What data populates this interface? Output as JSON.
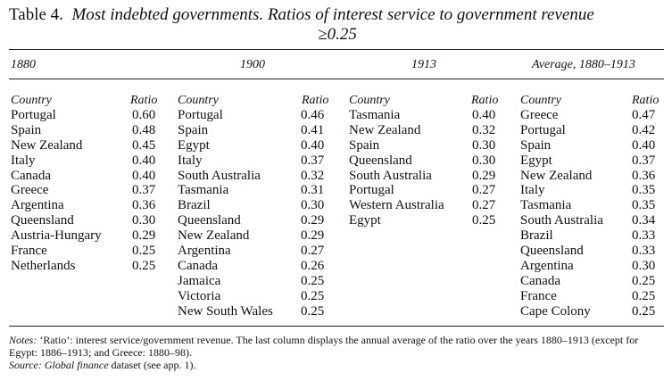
{
  "title": {
    "label": "Table 4.",
    "line1": "Most indebted governments. Ratios of interest service to government revenue",
    "line2": "≥0.25"
  },
  "headers": {
    "country": "Country",
    "ratio": "Ratio"
  },
  "groups": [
    {
      "period": "1880",
      "rows": [
        {
          "country": "Portugal",
          "ratio": "0.60"
        },
        {
          "country": "Spain",
          "ratio": "0.48"
        },
        {
          "country": "New Zealand",
          "ratio": "0.45"
        },
        {
          "country": "Italy",
          "ratio": "0.40"
        },
        {
          "country": "Canada",
          "ratio": "0.40"
        },
        {
          "country": "Greece",
          "ratio": "0.37"
        },
        {
          "country": "Argentina",
          "ratio": "0.36"
        },
        {
          "country": "Queensland",
          "ratio": "0.30"
        },
        {
          "country": "Austria-Hungary",
          "ratio": "0.29"
        },
        {
          "country": "France",
          "ratio": "0.25"
        },
        {
          "country": "Netherlands",
          "ratio": "0.25"
        }
      ]
    },
    {
      "period": "1900",
      "rows": [
        {
          "country": "Portugal",
          "ratio": "0.46"
        },
        {
          "country": "Spain",
          "ratio": "0.41"
        },
        {
          "country": "Egypt",
          "ratio": "0.40"
        },
        {
          "country": "Italy",
          "ratio": "0.37"
        },
        {
          "country": "South Australia",
          "ratio": "0.32"
        },
        {
          "country": "Tasmania",
          "ratio": "0.31"
        },
        {
          "country": "Brazil",
          "ratio": "0.30"
        },
        {
          "country": "Queensland",
          "ratio": "0.29"
        },
        {
          "country": "New Zealand",
          "ratio": "0.29"
        },
        {
          "country": "Argentina",
          "ratio": "0.27"
        },
        {
          "country": "Canada",
          "ratio": "0.26"
        },
        {
          "country": "Jamaica",
          "ratio": "0.25"
        },
        {
          "country": "Victoria",
          "ratio": "0.25"
        },
        {
          "country": "New South Wales",
          "ratio": "0.25"
        }
      ]
    },
    {
      "period": "1913",
      "rows": [
        {
          "country": "Tasmania",
          "ratio": "0.40"
        },
        {
          "country": "New Zealand",
          "ratio": "0.32"
        },
        {
          "country": "Spain",
          "ratio": "0.30"
        },
        {
          "country": "Queensland",
          "ratio": "0.30"
        },
        {
          "country": "South Australia",
          "ratio": "0.29"
        },
        {
          "country": "Portugal",
          "ratio": "0.27"
        },
        {
          "country": "Western Australia",
          "ratio": "0.27"
        },
        {
          "country": "Egypt",
          "ratio": "0.25"
        }
      ]
    },
    {
      "period": "Average, 1880–1913",
      "rows": [
        {
          "country": "Greece",
          "ratio": "0.47"
        },
        {
          "country": "Portugal",
          "ratio": "0.42"
        },
        {
          "country": "Spain",
          "ratio": "0.40"
        },
        {
          "country": "Egypt",
          "ratio": "0.37"
        },
        {
          "country": "New Zealand",
          "ratio": "0.36"
        },
        {
          "country": "Italy",
          "ratio": "0.35"
        },
        {
          "country": "Tasmania",
          "ratio": "0.35"
        },
        {
          "country": "South Australia",
          "ratio": "0.34"
        },
        {
          "country": "Brazil",
          "ratio": "0.33"
        },
        {
          "country": "Queensland",
          "ratio": "0.33"
        },
        {
          "country": "Argentina",
          "ratio": "0.30"
        },
        {
          "country": "Canada",
          "ratio": "0.25"
        },
        {
          "country": "France",
          "ratio": "0.25"
        },
        {
          "country": "Cape Colony",
          "ratio": "0.25"
        }
      ]
    }
  ],
  "notes": {
    "notes_label": "Notes:",
    "notes_text": "‘Ratio’: interest service/government revenue. The last column displays the annual average of the ratio over the years 1880–1913 (except for Egypt: 1886–1913; and Greece: 1880–98).",
    "source_label": "Source:",
    "source_title": "Global finance",
    "source_text": "dataset (see app. 1)."
  }
}
